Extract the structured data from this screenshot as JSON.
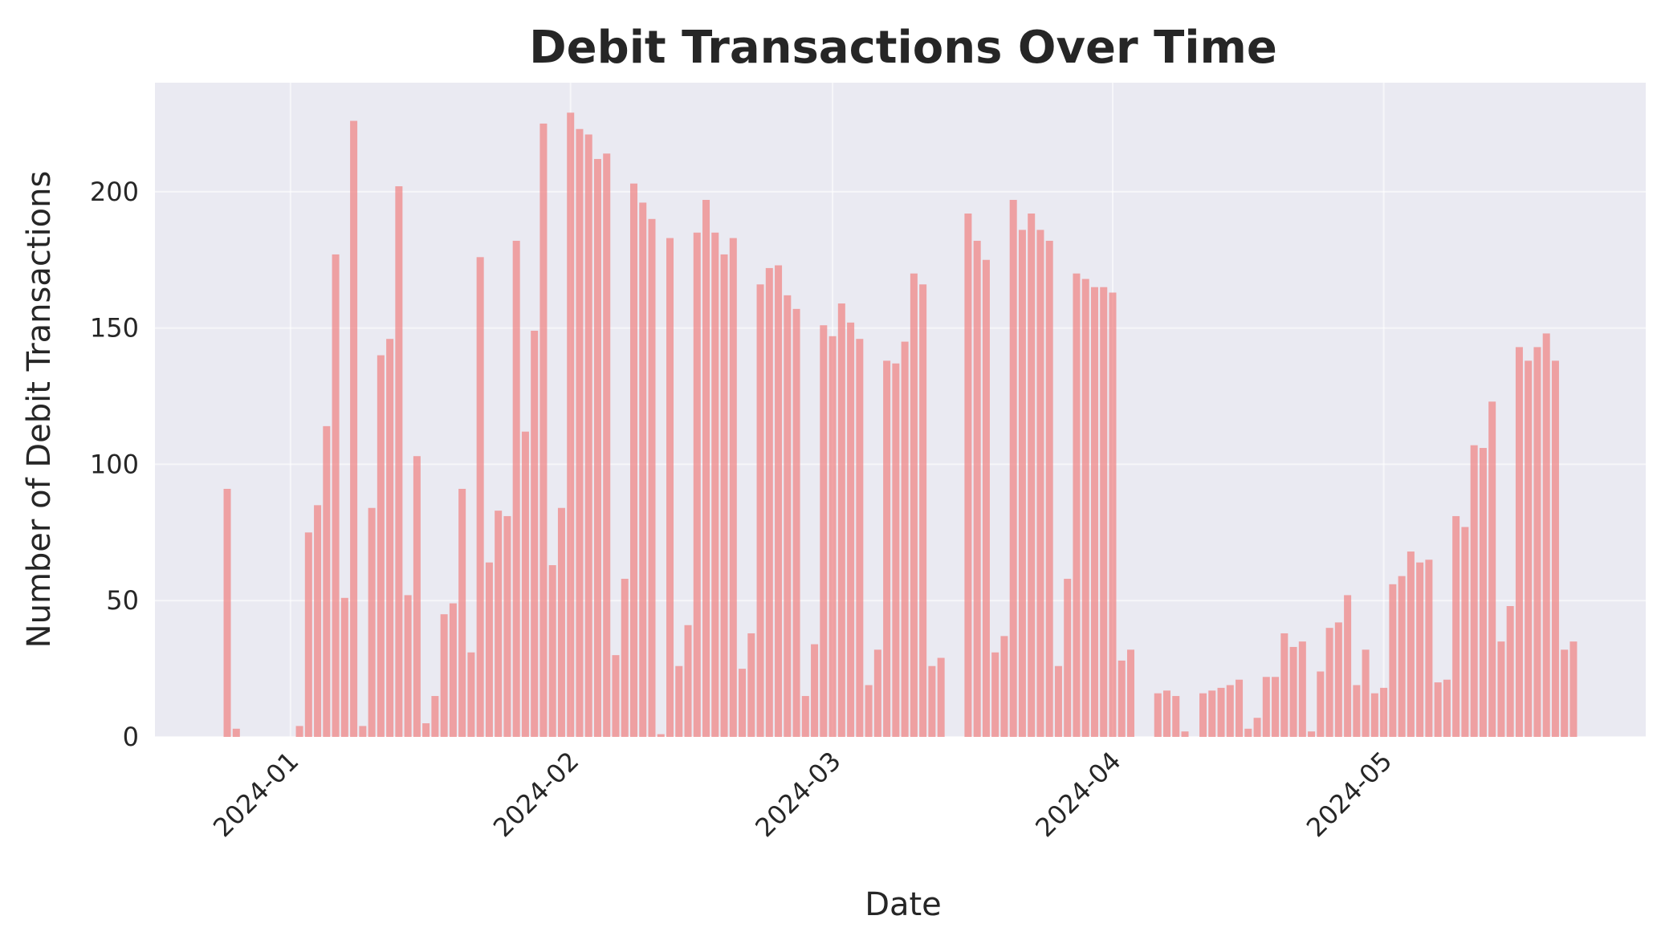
{
  "chart_data": {
    "type": "bar",
    "title": "Debit Transactions Over Time",
    "xlabel": "Date",
    "ylabel": "Number of Debit Transactions",
    "ylim": [
      0,
      240
    ],
    "xlim": [
      "2023-12-17",
      "2024-05-30"
    ],
    "grid": true,
    "yticks": [
      0,
      50,
      100,
      150,
      200
    ],
    "xticks": [
      {
        "date": "2024-01-01",
        "label": "2024-01"
      },
      {
        "date": "2024-02-01",
        "label": "2024-02"
      },
      {
        "date": "2024-03-01",
        "label": "2024-03"
      },
      {
        "date": "2024-04-01",
        "label": "2024-04"
      },
      {
        "date": "2024-05-01",
        "label": "2024-05"
      }
    ],
    "colors": {
      "bar": "#f08080",
      "plot_bg": "#eaeaf2",
      "grid": "#ffffff"
    },
    "series": [
      {
        "x": [
          "2023-12-25",
          "2023-12-26",
          "2023-12-27",
          "2023-12-28",
          "2023-12-29",
          "2023-12-30",
          "2023-12-31",
          "2024-01-01",
          "2024-01-02",
          "2024-01-03",
          "2024-01-04",
          "2024-01-05",
          "2024-01-06",
          "2024-01-07",
          "2024-01-08",
          "2024-01-09",
          "2024-01-10",
          "2024-01-11",
          "2024-01-12",
          "2024-01-13",
          "2024-01-14",
          "2024-01-15",
          "2024-01-16",
          "2024-01-17",
          "2024-01-18",
          "2024-01-19",
          "2024-01-20",
          "2024-01-21",
          "2024-01-22",
          "2024-01-23",
          "2024-01-24",
          "2024-01-25",
          "2024-01-26",
          "2024-01-27",
          "2024-01-28",
          "2024-01-29",
          "2024-01-30",
          "2024-01-31",
          "2024-02-01",
          "2024-02-02",
          "2024-02-03",
          "2024-02-04",
          "2024-02-05",
          "2024-02-06",
          "2024-02-07",
          "2024-02-08",
          "2024-02-09",
          "2024-02-10",
          "2024-02-11",
          "2024-02-12",
          "2024-02-13",
          "2024-02-14",
          "2024-02-15",
          "2024-02-16",
          "2024-02-17",
          "2024-02-18",
          "2024-02-19",
          "2024-02-20",
          "2024-02-21",
          "2024-02-22",
          "2024-02-23",
          "2024-02-24",
          "2024-02-25",
          "2024-02-26",
          "2024-02-27",
          "2024-02-28",
          "2024-02-29",
          "2024-03-01",
          "2024-03-02",
          "2024-03-03",
          "2024-03-04",
          "2024-03-05",
          "2024-03-06",
          "2024-03-07",
          "2024-03-08",
          "2024-03-09",
          "2024-03-10",
          "2024-03-11",
          "2024-03-12",
          "2024-03-13",
          "2024-03-14",
          "2024-03-15",
          "2024-03-16",
          "2024-03-17",
          "2024-03-18",
          "2024-03-19",
          "2024-03-20",
          "2024-03-21",
          "2024-03-22",
          "2024-03-23",
          "2024-03-24",
          "2024-03-25",
          "2024-03-26",
          "2024-03-27",
          "2024-03-28",
          "2024-03-29",
          "2024-03-30",
          "2024-03-31",
          "2024-04-01",
          "2024-04-02",
          "2024-04-03",
          "2024-04-04",
          "2024-04-05",
          "2024-04-06",
          "2024-04-07",
          "2024-04-08",
          "2024-04-09",
          "2024-04-10",
          "2024-04-11",
          "2024-04-12",
          "2024-04-13",
          "2024-04-14",
          "2024-04-15",
          "2024-04-16",
          "2024-04-17",
          "2024-04-18",
          "2024-04-19",
          "2024-04-20",
          "2024-04-21",
          "2024-04-22",
          "2024-04-23",
          "2024-04-24",
          "2024-04-25",
          "2024-04-26",
          "2024-04-27",
          "2024-04-28",
          "2024-04-29",
          "2024-04-30",
          "2024-05-01",
          "2024-05-02",
          "2024-05-03",
          "2024-05-04",
          "2024-05-05",
          "2024-05-06",
          "2024-05-07",
          "2024-05-08",
          "2024-05-09",
          "2024-05-10",
          "2024-05-11",
          "2024-05-12",
          "2024-05-13",
          "2024-05-14",
          "2024-05-15",
          "2024-05-16",
          "2024-05-17",
          "2024-05-18",
          "2024-05-19",
          "2024-05-20",
          "2024-05-21",
          "2024-05-22"
        ],
        "values": [
          91,
          3,
          0,
          0,
          0,
          0,
          0,
          0,
          4,
          75,
          85,
          114,
          177,
          51,
          226,
          4,
          84,
          140,
          146,
          202,
          52,
          103,
          5,
          15,
          45,
          49,
          91,
          31,
          176,
          64,
          83,
          81,
          182,
          112,
          149,
          225,
          63,
          84,
          229,
          223,
          221,
          212,
          214,
          30,
          58,
          203,
          196,
          190,
          1,
          183,
          26,
          41,
          185,
          197,
          185,
          177,
          183,
          25,
          38,
          166,
          172,
          173,
          162,
          157,
          15,
          34,
          151,
          147,
          159,
          152,
          146,
          19,
          32,
          138,
          137,
          145,
          170,
          166,
          26,
          29,
          0,
          0,
          192,
          182,
          175,
          31,
          37,
          197,
          186,
          192,
          186,
          182,
          26,
          58,
          170,
          168,
          165,
          165,
          163,
          28,
          32,
          0,
          0,
          16,
          17,
          15,
          2,
          0,
          16,
          17,
          18,
          19,
          21,
          3,
          7,
          22,
          22,
          38,
          33,
          35,
          2,
          24,
          40,
          42,
          52,
          19,
          32,
          16,
          18,
          56,
          59,
          68,
          64,
          65,
          20,
          21,
          81,
          77,
          107,
          106,
          123,
          35,
          48,
          143,
          138,
          143,
          148,
          138,
          32,
          35
        ]
      }
    ]
  }
}
